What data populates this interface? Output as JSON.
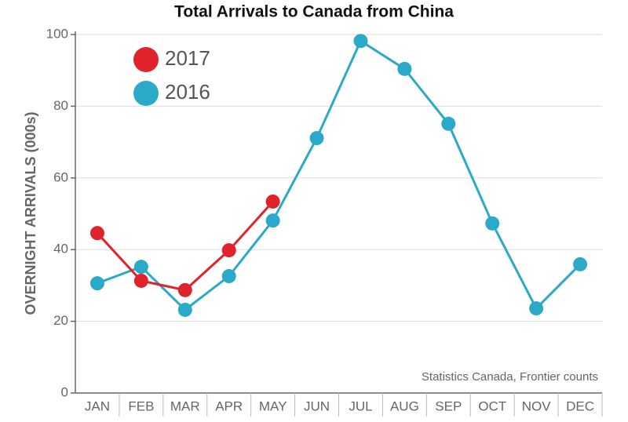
{
  "chart_data": {
    "type": "line",
    "title": "Total Arrivals to Canada from China",
    "y_label": "OVERNIGHT ARRIVALS (000s)",
    "annotation": "Statistics Canada, Frontier counts",
    "categories": [
      "JAN",
      "FEB",
      "MAR",
      "APR",
      "MAY",
      "JUN",
      "JUL",
      "AUG",
      "SEP",
      "OCT",
      "NOV",
      "DEC"
    ],
    "series": [
      {
        "name": "2017",
        "color": "#e0232b",
        "values": [
          44.6,
          31.3,
          28.7,
          39.8,
          53.4,
          null,
          null,
          null,
          null,
          null,
          null,
          null
        ]
      },
      {
        "name": "2016",
        "color": "#2aa9c9",
        "values": [
          30.6,
          35.2,
          23.2,
          32.6,
          48.1,
          71.1,
          98.2,
          90.4,
          75.1,
          47.3,
          23.6,
          35.9
        ]
      }
    ],
    "ylim": [
      0,
      100
    ],
    "yticks": [
      0,
      20,
      40,
      60,
      80,
      100
    ],
    "grid": true,
    "legend": "upper left"
  }
}
